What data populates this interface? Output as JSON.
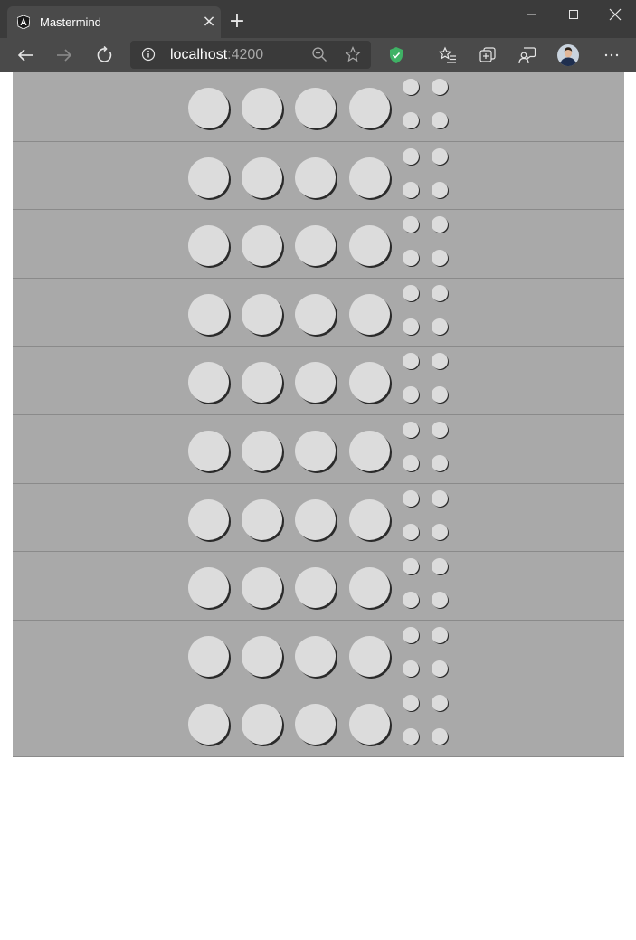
{
  "browser": {
    "tab_title": "Mastermind",
    "url_host": "localhost",
    "url_port": ":4200",
    "icons": {
      "favicon": "angular-icon",
      "tab_close": "close-icon",
      "new_tab": "plus-icon",
      "back": "back-arrow-icon",
      "forward": "forward-arrow-icon",
      "refresh": "refresh-icon",
      "site_info": "info-icon",
      "zoom": "zoom-out-icon",
      "favorite": "star-icon",
      "extension": "shield-icon",
      "favorites": "favorites-icon",
      "collections": "collections-icon",
      "feedback": "feedback-icon",
      "profile": "avatar",
      "menu": "more-icon"
    }
  },
  "board": {
    "rows": 10,
    "pegs_per_row": 4,
    "keys_per_row": 4,
    "colors": {
      "board": "#a9a9a9",
      "row_border": "#8a8a8a",
      "empty_peg": "#dcdcdc",
      "peg_shadow": "#2a2a2a"
    }
  }
}
